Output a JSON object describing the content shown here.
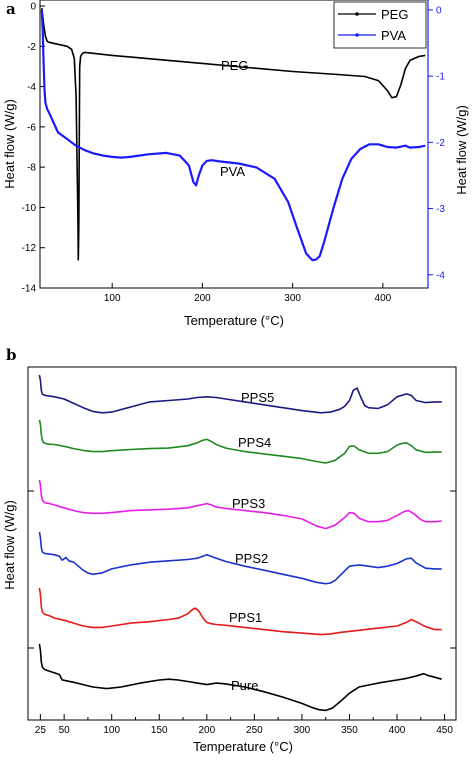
{
  "colors": {
    "PEG": "#000000",
    "PVA": "#1a1aff",
    "PPS5": "#1a1a80",
    "PPS4": "#1f8a1f",
    "PPS3": "#e61ee6",
    "PPS2": "#1a33cc",
    "PPS1": "#e61a1a",
    "Pure": "#000000"
  },
  "chart_data": [
    {
      "type": "line",
      "panel_label": "a",
      "xlabel": "Temperature (°C)",
      "ylabel": "Heat flow (W/g)",
      "y2label": "Heat flow (W/g)",
      "xlim": [
        20,
        450
      ],
      "ylim": [
        -14,
        0.3
      ],
      "y2lim": [
        -4.2,
        0.15
      ],
      "xticks": [
        100,
        200,
        300,
        400
      ],
      "yticks": [
        0,
        -2,
        -4,
        -6,
        -8,
        -10,
        -12,
        -14
      ],
      "y2ticks": [
        0,
        -1,
        -2,
        -3,
        -4
      ],
      "legend_position": "top-right",
      "series": [
        {
          "name": "PEG",
          "axis": "left",
          "label": "PEG",
          "x": [
            22,
            24,
            26,
            28,
            30,
            35,
            40,
            45,
            50,
            55,
            58,
            60,
            61,
            62,
            62.5,
            63,
            63.5,
            64,
            65,
            67,
            70,
            80,
            100,
            150,
            200,
            250,
            300,
            350,
            380,
            395,
            405,
            410,
            415,
            420,
            425,
            430,
            440,
            447
          ],
          "y": [
            -0.1,
            -0.9,
            -1.5,
            -1.75,
            -1.8,
            -1.85,
            -1.9,
            -1.95,
            -2.0,
            -2.15,
            -2.6,
            -4.5,
            -7.5,
            -10.5,
            -12.6,
            -11.0,
            -6.5,
            -3.0,
            -2.5,
            -2.35,
            -2.3,
            -2.35,
            -2.45,
            -2.65,
            -2.85,
            -3.05,
            -3.25,
            -3.4,
            -3.5,
            -3.7,
            -4.2,
            -4.55,
            -4.5,
            -3.9,
            -3.1,
            -2.7,
            -2.5,
            -2.45
          ]
        },
        {
          "name": "PVA",
          "axis": "right",
          "label": "PVA",
          "x": [
            22,
            23,
            24,
            25,
            26,
            28,
            30,
            35,
            40,
            50,
            60,
            70,
            80,
            90,
            100,
            110,
            120,
            140,
            160,
            175,
            185,
            190,
            193,
            196,
            200,
            205,
            210,
            220,
            240,
            260,
            280,
            295,
            305,
            315,
            322,
            326,
            330,
            335,
            345,
            355,
            365,
            375,
            385,
            395,
            405,
            415,
            425,
            430,
            440,
            447
          ],
          "y": [
            0.0,
            -0.3,
            -0.8,
            -1.2,
            -1.4,
            -1.5,
            -1.55,
            -1.7,
            -1.85,
            -1.95,
            -2.05,
            -2.12,
            -2.17,
            -2.2,
            -2.22,
            -2.23,
            -2.22,
            -2.18,
            -2.16,
            -2.2,
            -2.35,
            -2.6,
            -2.65,
            -2.5,
            -2.35,
            -2.28,
            -2.27,
            -2.29,
            -2.32,
            -2.38,
            -2.55,
            -2.9,
            -3.3,
            -3.68,
            -3.78,
            -3.77,
            -3.72,
            -3.5,
            -3.0,
            -2.55,
            -2.25,
            -2.1,
            -2.03,
            -2.03,
            -2.07,
            -2.08,
            -2.05,
            -2.08,
            -2.07,
            -2.05
          ]
        }
      ]
    },
    {
      "type": "line",
      "panel_label": "b",
      "xlabel": "Temperature (°C)",
      "ylabel": "Heat flow (W/g)",
      "xlim": [
        12,
        462
      ],
      "xticks": [
        25,
        50,
        100,
        150,
        200,
        250,
        300,
        350,
        400,
        450
      ],
      "x_minor_ticks": [
        75,
        125,
        175,
        225,
        275,
        325,
        375,
        425
      ],
      "series": [
        {
          "name": "PPS5",
          "label": "PPS5",
          "x": [
            24,
            25,
            26,
            27,
            28,
            30,
            35,
            40,
            50,
            60,
            70,
            80,
            90,
            100,
            120,
            140,
            160,
            180,
            190,
            200,
            210,
            220,
            240,
            260,
            280,
            300,
            320,
            330,
            340,
            345,
            350,
            354,
            358,
            362,
            366,
            370,
            380,
            390,
            400,
            410,
            415,
            420,
            430,
            440,
            447
          ],
          "y": [
            -0.5,
            -1.2,
            -2.6,
            -3.1,
            -3.2,
            -3.3,
            -3.4,
            -3.5,
            -3.8,
            -4.4,
            -5.0,
            -5.5,
            -5.7,
            -5.6,
            -4.9,
            -4.2,
            -4.0,
            -3.8,
            -3.6,
            -3.5,
            -3.6,
            -3.8,
            -4.2,
            -4.6,
            -5.0,
            -5.4,
            -5.7,
            -5.6,
            -5.2,
            -4.8,
            -4.0,
            -2.6,
            -2.3,
            -3.6,
            -4.7,
            -5.0,
            -5.1,
            -4.6,
            -3.5,
            -3.1,
            -3.3,
            -4.0,
            -4.3,
            -4.2,
            -4.2
          ]
        },
        {
          "name": "PPS4",
          "label": "PPS4",
          "x": [
            24,
            25,
            26,
            27,
            28,
            30,
            35,
            40,
            50,
            60,
            70,
            80,
            90,
            100,
            120,
            140,
            160,
            180,
            190,
            195,
            200,
            205,
            210,
            220,
            240,
            260,
            280,
            300,
            315,
            325,
            335,
            345,
            350,
            355,
            360,
            370,
            380,
            390,
            400,
            405,
            410,
            415,
            420,
            430,
            440,
            447
          ],
          "y": [
            -0.8,
            -1.5,
            -3.3,
            -4.2,
            -4.6,
            -4.8,
            -4.95,
            -5.0,
            -5.3,
            -5.7,
            -6.0,
            -6.2,
            -6.2,
            -6.05,
            -5.85,
            -5.7,
            -5.6,
            -5.2,
            -4.7,
            -4.3,
            -4.1,
            -4.5,
            -5.0,
            -5.6,
            -6.2,
            -6.6,
            -7.0,
            -7.4,
            -7.9,
            -8.15,
            -7.7,
            -6.5,
            -5.3,
            -5.25,
            -5.9,
            -6.5,
            -6.5,
            -6.2,
            -5.1,
            -4.8,
            -4.7,
            -5.2,
            -5.9,
            -6.35,
            -6.3,
            -6.3
          ]
        },
        {
          "name": "PPS3",
          "label": "PPS3",
          "x": [
            24,
            25,
            26,
            27,
            28,
            30,
            35,
            40,
            50,
            60,
            70,
            80,
            90,
            100,
            120,
            140,
            160,
            180,
            190,
            200,
            205,
            210,
            220,
            240,
            260,
            280,
            300,
            315,
            325,
            335,
            345,
            350,
            355,
            360,
            370,
            380,
            390,
            400,
            408,
            412,
            418,
            425,
            430,
            440,
            447
          ],
          "y": [
            -0.6,
            -1.3,
            -2.8,
            -3.4,
            -3.7,
            -3.9,
            -4.0,
            -4.2,
            -4.6,
            -5.0,
            -5.3,
            -5.4,
            -5.4,
            -5.3,
            -5.0,
            -4.9,
            -4.8,
            -4.6,
            -4.3,
            -4.0,
            -4.2,
            -4.5,
            -4.7,
            -5.0,
            -5.3,
            -5.7,
            -6.2,
            -7.2,
            -7.6,
            -7.1,
            -6.0,
            -5.3,
            -5.4,
            -6.1,
            -6.6,
            -6.6,
            -6.4,
            -5.7,
            -5.1,
            -5.0,
            -5.5,
            -6.3,
            -6.6,
            -6.6,
            -6.5
          ]
        },
        {
          "name": "PPS2",
          "label": "PPS2",
          "x": [
            24,
            25,
            26,
            27,
            28,
            30,
            35,
            40,
            45,
            48,
            52,
            55,
            60,
            65,
            70,
            75,
            80,
            90,
            100,
            120,
            140,
            160,
            180,
            190,
            200,
            210,
            220,
            240,
            260,
            280,
            300,
            315,
            325,
            330,
            335,
            345,
            350,
            360,
            370,
            380,
            390,
            400,
            410,
            415,
            420,
            430,
            440,
            447
          ],
          "y": [
            -0.7,
            -1.5,
            -3.0,
            -3.6,
            -3.8,
            -3.9,
            -4.0,
            -4.1,
            -4.3,
            -4.9,
            -4.5,
            -5.0,
            -5.2,
            -5.8,
            -6.4,
            -6.8,
            -7.0,
            -6.8,
            -6.2,
            -5.6,
            -5.2,
            -5.0,
            -4.8,
            -4.6,
            -4.1,
            -4.6,
            -5.1,
            -5.8,
            -6.4,
            -7.0,
            -7.6,
            -8.2,
            -8.4,
            -8.3,
            -7.9,
            -6.5,
            -5.8,
            -5.6,
            -5.8,
            -6.0,
            -5.8,
            -5.4,
            -4.7,
            -4.6,
            -5.3,
            -6.1,
            -6.2,
            -6.2
          ]
        },
        {
          "name": "PPS1",
          "label": "PPS1",
          "x": [
            24,
            25,
            26,
            27,
            28,
            30,
            35,
            40,
            50,
            60,
            70,
            80,
            90,
            100,
            120,
            140,
            160,
            170,
            180,
            185,
            188,
            192,
            196,
            200,
            205,
            210,
            220,
            240,
            260,
            280,
            300,
            320,
            330,
            340,
            360,
            380,
            400,
            410,
            415,
            420,
            430,
            440,
            447
          ],
          "y": [
            -0.5,
            -1.4,
            -3.1,
            -3.8,
            -4.0,
            -4.2,
            -4.4,
            -4.7,
            -5.0,
            -5.4,
            -5.8,
            -6.0,
            -6.0,
            -5.8,
            -5.4,
            -5.2,
            -4.9,
            -4.7,
            -4.1,
            -3.5,
            -3.3,
            -3.8,
            -4.7,
            -5.3,
            -5.5,
            -5.6,
            -5.7,
            -6.0,
            -6.3,
            -6.6,
            -6.8,
            -7.0,
            -6.9,
            -6.7,
            -6.4,
            -6.1,
            -5.8,
            -5.3,
            -4.9,
            -5.2,
            -5.9,
            -6.3,
            -6.3
          ]
        },
        {
          "name": "Pure",
          "label": "Pure",
          "x": [
            24,
            25,
            26,
            27,
            28,
            30,
            35,
            40,
            45,
            48,
            52,
            60,
            70,
            80,
            95,
            110,
            130,
            150,
            160,
            170,
            180,
            190,
            200,
            210,
            220,
            240,
            260,
            280,
            300,
            310,
            318,
            325,
            332,
            340,
            350,
            360,
            380,
            400,
            410,
            420,
            428,
            432,
            438,
            447
          ],
          "y": [
            0.0,
            -0.8,
            -2.3,
            -2.9,
            -3.1,
            -3.3,
            -3.5,
            -3.7,
            -3.9,
            -4.6,
            -4.7,
            -4.9,
            -5.2,
            -5.5,
            -5.7,
            -5.5,
            -5.0,
            -4.6,
            -4.5,
            -4.6,
            -4.8,
            -5.0,
            -5.2,
            -5.0,
            -5.1,
            -5.5,
            -6.1,
            -6.8,
            -7.6,
            -8.1,
            -8.4,
            -8.5,
            -8.2,
            -7.4,
            -6.3,
            -5.5,
            -5.0,
            -4.6,
            -4.4,
            -4.1,
            -3.8,
            -4.0,
            -4.2,
            -4.5
          ]
        }
      ]
    }
  ]
}
